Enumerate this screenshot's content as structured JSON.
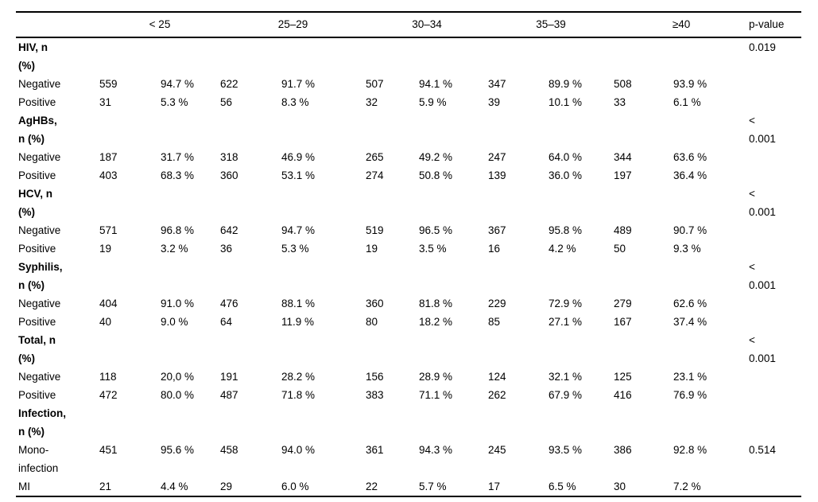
{
  "header": {
    "age_groups": [
      "< 25",
      "25–29",
      "30–34",
      "35–39",
      "≥40"
    ],
    "pvalue_label": "p-value"
  },
  "rows": [
    {
      "type": "section",
      "label": "HIV, n\n(%)",
      "cells": [
        "",
        "",
        "",
        "",
        "",
        "",
        "",
        "",
        "",
        ""
      ],
      "p": "0.019"
    },
    {
      "type": "data",
      "label": "Negative",
      "cells": [
        "559",
        "94.7 %",
        "622",
        "91.7 %",
        "507",
        "94.1 %",
        "347",
        "89.9 %",
        "508",
        "93.9 %"
      ],
      "p": ""
    },
    {
      "type": "data",
      "label": "Positive",
      "cells": [
        "31",
        "5.3 %",
        "56",
        "8.3 %",
        "32",
        "5.9 %",
        "39",
        "10.1 %",
        "33",
        "6.1 %"
      ],
      "p": ""
    },
    {
      "type": "section",
      "label": "AgHBs,\nn (%)",
      "cells": [
        "",
        "",
        "",
        "",
        "",
        "",
        "",
        "",
        "",
        ""
      ],
      "p": "<\n0.001"
    },
    {
      "type": "data",
      "label": "Negative",
      "cells": [
        "187",
        "31.7 %",
        "318",
        "46.9 %",
        "265",
        "49.2 %",
        "247",
        "64.0 %",
        "344",
        "63.6 %"
      ],
      "p": ""
    },
    {
      "type": "data",
      "label": "Positive",
      "cells": [
        "403",
        "68.3 %",
        "360",
        "53.1 %",
        "274",
        "50.8 %",
        "139",
        "36.0 %",
        "197",
        "36.4 %"
      ],
      "p": ""
    },
    {
      "type": "section",
      "label": "HCV, n\n(%)",
      "cells": [
        "",
        "",
        "",
        "",
        "",
        "",
        "",
        "",
        "",
        ""
      ],
      "p": "<\n0.001"
    },
    {
      "type": "data",
      "label": "Negative",
      "cells": [
        "571",
        "96.8 %",
        "642",
        "94.7 %",
        "519",
        "96.5 %",
        "367",
        "95.8 %",
        "489",
        "90.7 %"
      ],
      "p": ""
    },
    {
      "type": "data",
      "label": "Positive",
      "cells": [
        "19",
        "3.2 %",
        "36",
        "5.3 %",
        "19",
        "3.5 %",
        "16",
        "4.2 %",
        "50",
        "9.3 %"
      ],
      "p": ""
    },
    {
      "type": "section",
      "label": "Syphilis,\nn (%)",
      "cells": [
        "",
        "",
        "",
        "",
        "",
        "",
        "",
        "",
        "",
        ""
      ],
      "p": "<\n0.001"
    },
    {
      "type": "data",
      "label": "Negative",
      "cells": [
        "404",
        "91.0 %",
        "476",
        "88.1 %",
        "360",
        "81.8 %",
        "229",
        "72.9 %",
        "279",
        "62.6 %"
      ],
      "p": ""
    },
    {
      "type": "data",
      "label": "Positive",
      "cells": [
        "40",
        "9.0 %",
        "64",
        "11.9 %",
        "80",
        "18.2 %",
        "85",
        "27.1 %",
        "167",
        "37.4 %"
      ],
      "p": ""
    },
    {
      "type": "section",
      "label": "Total, n\n(%)",
      "cells": [
        "",
        "",
        "",
        "",
        "",
        "",
        "",
        "",
        "",
        ""
      ],
      "p": "<\n0.001"
    },
    {
      "type": "data",
      "label": "Negative",
      "cells": [
        "118",
        "20,0 %",
        "191",
        "28.2 %",
        "156",
        "28.9 %",
        "124",
        "32.1 %",
        "125",
        "23.1 %"
      ],
      "p": ""
    },
    {
      "type": "data",
      "label": "Positive",
      "cells": [
        "472",
        "80.0 %",
        "487",
        "71.8 %",
        "383",
        "71.1 %",
        "262",
        "67.9 %",
        "416",
        "76.9 %"
      ],
      "p": ""
    },
    {
      "type": "section",
      "label": "Infection,\nn (%)",
      "cells": [
        "",
        "",
        "",
        "",
        "",
        "",
        "",
        "",
        "",
        ""
      ],
      "p": ""
    },
    {
      "type": "data",
      "label": "Mono-\ninfection",
      "cells": [
        "451",
        "95.6 %",
        "458",
        "94.0 %",
        "361",
        "94.3 %",
        "245",
        "93.5 %",
        "386",
        "92.8 %"
      ],
      "p": "0.514"
    },
    {
      "type": "data",
      "label": "MI",
      "cells": [
        "21",
        "4.4 %",
        "29",
        "6.0 %",
        "22",
        "5.7 %",
        "17",
        "6.5 %",
        "30",
        "7.2 %"
      ],
      "p": ""
    }
  ]
}
